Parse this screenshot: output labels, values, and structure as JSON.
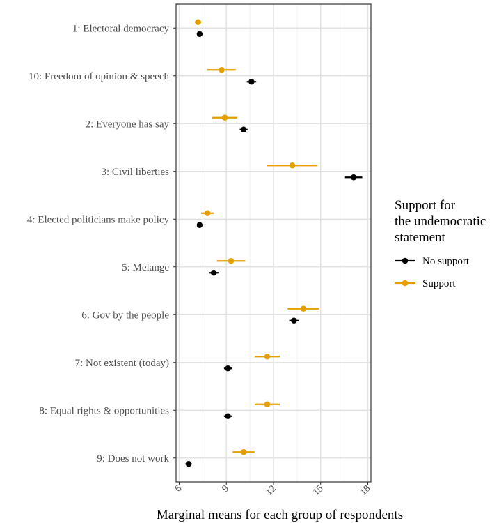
{
  "chart_data": {
    "type": "scatter",
    "subtype": "dot-and-whisker",
    "orientation": "horizontal",
    "title": "",
    "xlabel": "Marginal means for each group of respondents",
    "ylabel": "",
    "xlim": [
      5.8,
      18.2
    ],
    "x_ticks": [
      6,
      9,
      12,
      15,
      18
    ],
    "x_tick_labels": [
      "6",
      "9",
      "12",
      "15",
      "18"
    ],
    "grid": true,
    "categories": [
      "1: Electoral democracy",
      "10: Freedom of opinion & speech",
      "2: Everyone has say",
      "3: Civil liberties",
      "4: Elected politicians make policy",
      "5: Melange",
      "6: Gov by the people",
      "7: Not existent (today)",
      "8: Equal rights & opportunities",
      "9: Does not work"
    ],
    "legend": {
      "title_lines": [
        "Support for",
        "the undemocratic",
        "statement"
      ],
      "placement": "right"
    },
    "series": [
      {
        "name": "No support",
        "color": "#000000",
        "values": [
          7.3,
          10.6,
          10.1,
          17.1,
          7.3,
          8.2,
          13.3,
          9.1,
          9.1,
          6.6
        ],
        "lower": [
          7.15,
          10.3,
          9.85,
          16.55,
          7.15,
          7.9,
          13.0,
          8.85,
          8.85,
          6.4
        ],
        "upper": [
          7.45,
          10.9,
          10.35,
          17.65,
          7.45,
          8.5,
          13.6,
          9.35,
          9.35,
          6.8
        ]
      },
      {
        "name": "Support",
        "color": "#E69F00",
        "values": [
          7.2,
          8.7,
          8.9,
          13.2,
          7.8,
          9.3,
          13.9,
          11.6,
          11.6,
          10.1
        ],
        "lower": [
          7.0,
          7.8,
          8.1,
          11.6,
          7.4,
          8.4,
          12.9,
          10.8,
          10.8,
          9.4
        ],
        "upper": [
          7.4,
          9.6,
          9.7,
          14.8,
          8.2,
          10.2,
          14.9,
          12.4,
          12.4,
          10.8
        ]
      }
    ]
  }
}
